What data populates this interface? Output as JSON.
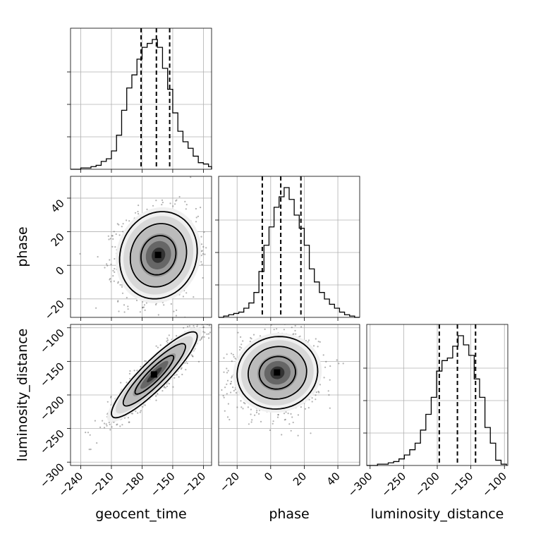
{
  "chart_data": {
    "type": "corner",
    "parameters": [
      {
        "key": "geocent_time",
        "label": "geocent_time",
        "range": [
          -250,
          -112
        ],
        "ticks": [
          -240,
          -210,
          -180,
          -150,
          -120
        ]
      },
      {
        "key": "phase",
        "label": "phase",
        "range": [
          -31,
          53
        ],
        "ticks": [
          -20,
          0,
          20,
          40
        ]
      },
      {
        "key": "luminosity_distance",
        "label": "luminosity_distance",
        "range": [
          -305,
          -95
        ],
        "ticks": [
          -300,
          -250,
          -200,
          -150,
          -100
        ]
      }
    ],
    "marginals": [
      {
        "parameter": "geocent_time",
        "quantiles": [
          -181,
          -166,
          -153
        ],
        "bin_edges": [
          -250,
          -245,
          -240,
          -235,
          -230,
          -225,
          -220,
          -215,
          -210,
          -205,
          -200,
          -195,
          -190,
          -185,
          -180,
          -175,
          -170,
          -165,
          -160,
          -155,
          -150,
          -145,
          -140,
          -135,
          -130,
          -125,
          -120,
          -115,
          -112
        ],
        "counts": [
          0,
          0,
          1,
          1,
          2,
          3,
          6,
          8,
          14,
          26,
          45,
          62,
          72,
          84,
          93,
          96,
          99,
          93,
          77,
          61,
          43,
          29,
          21,
          16,
          10,
          5,
          4,
          2
        ]
      },
      {
        "parameter": "phase",
        "quantiles": [
          -5,
          6,
          18
        ],
        "bin_edges": [
          -31,
          -28,
          -25,
          -22,
          -19,
          -16,
          -13,
          -10,
          -7,
          -4,
          -1,
          2,
          5,
          8,
          11,
          14,
          17,
          20,
          23,
          26,
          29,
          32,
          35,
          38,
          41,
          44,
          47,
          50,
          53
        ],
        "counts": [
          0,
          1,
          2,
          3,
          4,
          7,
          11,
          19,
          35,
          55,
          69,
          84,
          92,
          99,
          90,
          78,
          68,
          55,
          37,
          27,
          19,
          14,
          10,
          7,
          4,
          2,
          1,
          0
        ]
      },
      {
        "parameter": "luminosity_distance",
        "quantiles": [
          -197,
          -170,
          -143
        ],
        "bin_edges": [
          -305,
          -297,
          -289,
          -281,
          -273,
          -265,
          -257,
          -249,
          -241,
          -233,
          -225,
          -217,
          -209,
          -201,
          -193,
          -185,
          -177,
          -169,
          -161,
          -153,
          -145,
          -137,
          -129,
          -121,
          -113,
          -105,
          -97
        ],
        "counts": [
          0,
          0,
          1,
          1,
          2,
          3,
          5,
          8,
          12,
          17,
          27,
          39,
          52,
          72,
          80,
          82,
          91,
          99,
          92,
          84,
          66,
          52,
          29,
          17,
          4,
          1
        ]
      }
    ],
    "joints": [
      {
        "x": "geocent_time",
        "y": "phase",
        "center": [
          -164,
          6
        ],
        "sigma": [
          19,
          13
        ],
        "correlation": 0.1
      },
      {
        "x": "geocent_time",
        "y": "luminosity_distance",
        "center": [
          -168,
          -170
        ],
        "sigma": [
          21,
          32
        ],
        "correlation": 0.9
      },
      {
        "x": "phase",
        "y": "luminosity_distance",
        "center": [
          4,
          -167
        ],
        "sigma": [
          12,
          27
        ],
        "correlation": 0.05
      }
    ],
    "colors": {
      "line": "#000000",
      "grid": "#b0b0b0",
      "points": "#555555"
    }
  }
}
